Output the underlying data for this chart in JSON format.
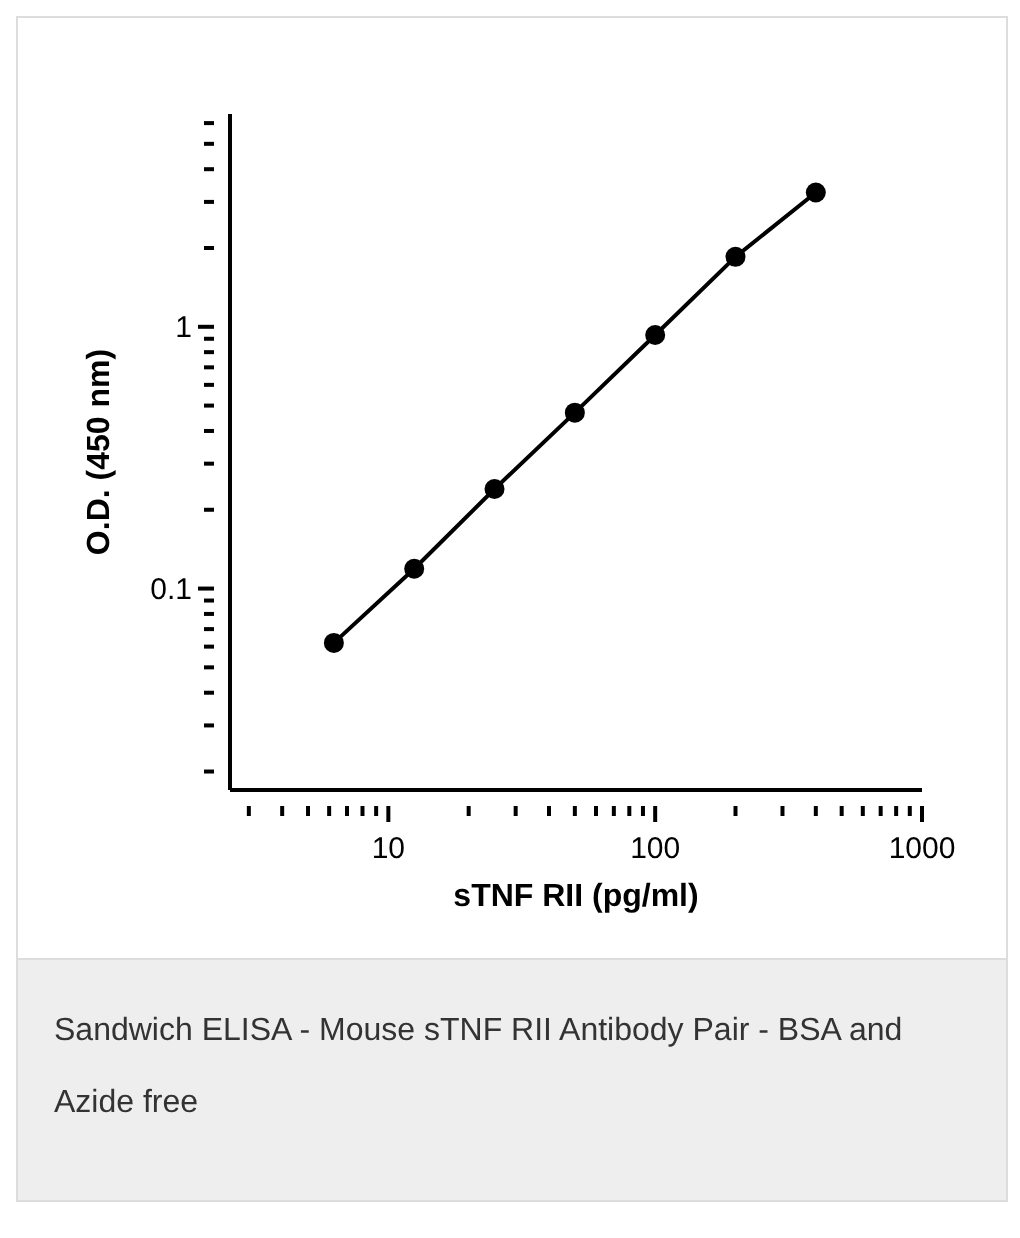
{
  "chart_data": {
    "type": "line",
    "xlabel": "sTNF RII (pg/ml)",
    "ylabel": "O.D. (450 nm)",
    "log": "xy",
    "marker": "circle",
    "line_style": "solid",
    "grid": false,
    "legend": false,
    "x": [
      6.25,
      12.5,
      25,
      50,
      100,
      200,
      400
    ],
    "series": [
      {
        "color": "#000000",
        "values": [
          0.062,
          0.119,
          0.24,
          0.47,
          0.93,
          1.85,
          3.26
        ]
      }
    ],
    "xlim": [
      2.55,
      1000
    ],
    "ylim": [
      0.017,
      6.5
    ],
    "xticks": [
      {
        "value": 3,
        "label": null
      },
      {
        "value": 4,
        "label": null
      },
      {
        "value": 5,
        "label": null
      },
      {
        "value": 6,
        "label": null
      },
      {
        "value": 7,
        "label": null
      },
      {
        "value": 8,
        "label": null
      },
      {
        "value": 9,
        "label": null
      },
      10,
      {
        "value": 20,
        "label": null
      },
      {
        "value": 30,
        "label": null
      },
      {
        "value": 40,
        "label": null
      },
      {
        "value": 50,
        "label": null
      },
      {
        "value": 60,
        "label": null
      },
      {
        "value": 70,
        "label": null
      },
      {
        "value": 80,
        "label": null
      },
      {
        "value": 90,
        "label": null
      },
      100,
      {
        "value": 200,
        "label": null
      },
      {
        "value": 300,
        "label": null
      },
      {
        "value": 400,
        "label": null
      },
      {
        "value": 500,
        "label": null
      },
      {
        "value": 600,
        "label": null
      },
      {
        "value": 700,
        "label": null
      },
      {
        "value": 800,
        "label": null
      },
      {
        "value": 900,
        "label": null
      },
      1000
    ],
    "yticks": [
      {
        "value": 0.02,
        "label": null
      },
      {
        "value": 0.03,
        "label": null
      },
      {
        "value": 0.04,
        "label": null
      },
      {
        "value": 0.05,
        "label": null
      },
      {
        "value": 0.06,
        "label": null
      },
      {
        "value": 0.07,
        "label": null
      },
      {
        "value": 0.08,
        "label": null
      },
      {
        "value": 0.09,
        "label": null
      },
      0.1,
      {
        "value": 0.2,
        "label": null
      },
      {
        "value": 0.3,
        "label": null
      },
      {
        "value": 0.4,
        "label": null
      },
      {
        "value": 0.5,
        "label": null
      },
      {
        "value": 0.6,
        "label": null
      },
      {
        "value": 0.7,
        "label": null
      },
      {
        "value": 0.8,
        "label": null
      },
      {
        "value": 0.9,
        "label": null
      },
      1,
      {
        "value": 2,
        "label": null
      },
      {
        "value": 3,
        "label": null
      },
      {
        "value": 4,
        "label": null
      },
      {
        "value": 5,
        "label": null
      },
      {
        "value": 6,
        "label": null
      }
    ],
    "annotations": [
      "Sandwich ELISA - Mouse sTNF RII Antibody Pair - BSA and Azide free"
    ]
  }
}
